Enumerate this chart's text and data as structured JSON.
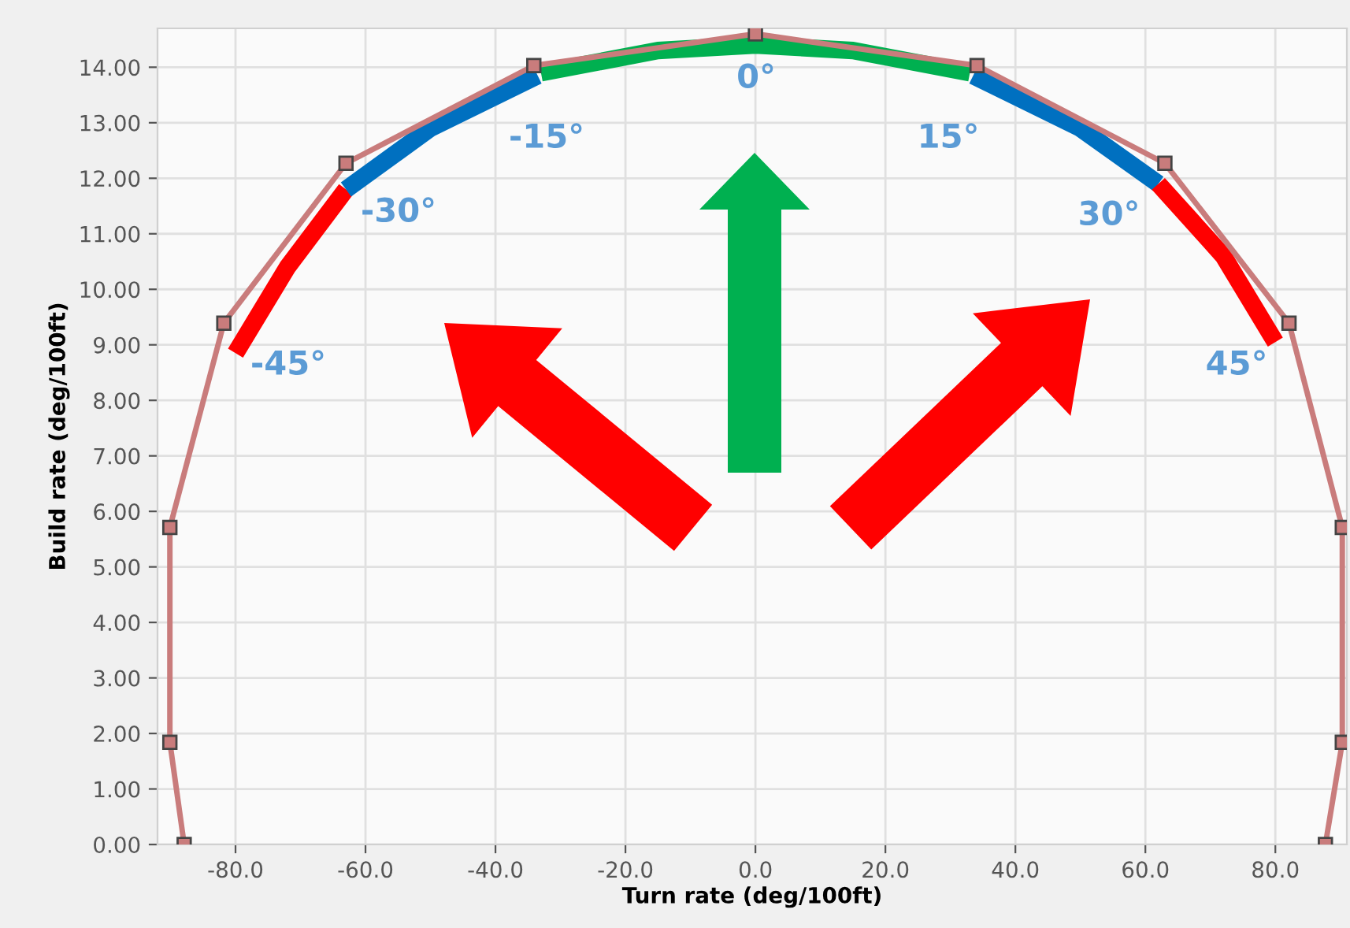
{
  "chart_data": {
    "type": "line",
    "xlabel": "Turn rate (deg/100ft)",
    "ylabel": "Build rate (deg/100ft)",
    "xlim": [
      -92,
      91
    ],
    "ylim": [
      0,
      14.7
    ],
    "xticks": [
      {
        "value": -80,
        "label": "-80.0"
      },
      {
        "value": -60,
        "label": "-60.0"
      },
      {
        "value": -40,
        "label": "-40.0"
      },
      {
        "value": -20,
        "label": "-20.0"
      },
      {
        "value": 0,
        "label": "0.0"
      },
      {
        "value": 20,
        "label": "20.0"
      },
      {
        "value": 40,
        "label": "40.0"
      },
      {
        "value": 60,
        "label": "60.0"
      },
      {
        "value": 80,
        "label": "80.0"
      }
    ],
    "yticks": [
      {
        "value": 0,
        "label": "0.00"
      },
      {
        "value": 1,
        "label": "1.00"
      },
      {
        "value": 2,
        "label": "2.00"
      },
      {
        "value": 3,
        "label": "3.00"
      },
      {
        "value": 4,
        "label": "4.00"
      },
      {
        "value": 5,
        "label": "5.00"
      },
      {
        "value": 6,
        "label": "6.00"
      },
      {
        "value": 7,
        "label": "7.00"
      },
      {
        "value": 8,
        "label": "8.00"
      },
      {
        "value": 9,
        "label": "9.00"
      },
      {
        "value": 10,
        "label": "10.00"
      },
      {
        "value": 11,
        "label": "11.00"
      },
      {
        "value": 12,
        "label": "12.00"
      },
      {
        "value": 13,
        "label": "13.00"
      },
      {
        "value": 14,
        "label": "14.00"
      }
    ],
    "grid": true,
    "legend": false,
    "series": [
      {
        "color": "#c97c7c",
        "marker": "square",
        "x": [
          -87.9,
          -90.1,
          -90.1,
          -81.8,
          -63.0,
          -34.1,
          0,
          34.1,
          63.0,
          82.1,
          90.3,
          90.3,
          87.7
        ],
        "values": [
          0,
          1.84,
          5.71,
          9.39,
          12.27,
          14.03,
          14.6,
          14.03,
          12.27,
          9.39,
          5.71,
          1.84,
          0
        ]
      },
      {
        "color": "#ff0000",
        "marker": "none",
        "x": [
          -80,
          -72,
          -63
        ],
        "values": [
          8.85,
          10.4,
          11.8
        ]
      },
      {
        "color": "#0070c0",
        "marker": "none",
        "x": [
          -63,
          -50,
          -33.5
        ],
        "values": [
          11.8,
          12.9,
          13.85
        ]
      },
      {
        "color": "#00b050",
        "marker": "none",
        "x": [
          -33,
          -15,
          0,
          15,
          33
        ],
        "values": [
          13.9,
          14.3,
          14.4,
          14.3,
          13.9
        ]
      },
      {
        "color": "#0070c0",
        "marker": "none",
        "x": [
          33.5,
          50,
          62
        ],
        "values": [
          13.85,
          12.9,
          11.9
        ]
      },
      {
        "color": "#ff0000",
        "marker": "none",
        "x": [
          62,
          72,
          80
        ],
        "values": [
          11.9,
          10.6,
          9.05
        ]
      }
    ],
    "annotations": [
      "0°",
      "15°",
      "-15°",
      "30°",
      "-30°",
      "45°",
      "-45°"
    ]
  }
}
